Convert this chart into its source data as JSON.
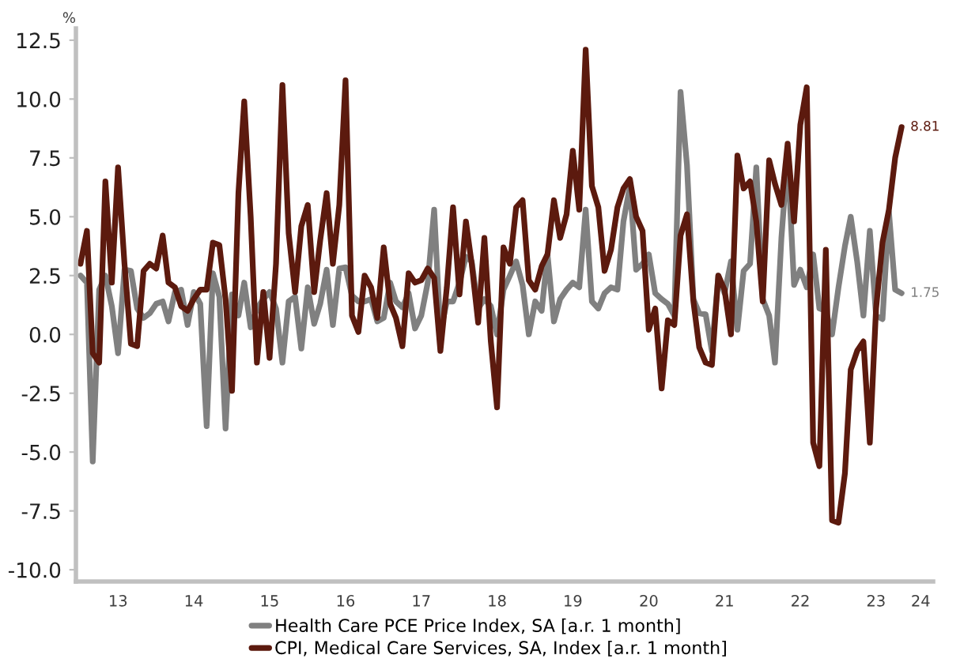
{
  "chart_data": {
    "type": "line",
    "ylabel": "%",
    "x": [
      "2013-01",
      "2013-02",
      "2013-03",
      "2013-04",
      "2013-05",
      "2013-06",
      "2013-07",
      "2013-08",
      "2013-09",
      "2013-10",
      "2013-11",
      "2013-12",
      "2014-01",
      "2014-02",
      "2014-03",
      "2014-04",
      "2014-05",
      "2014-06",
      "2014-07",
      "2014-08",
      "2014-09",
      "2014-10",
      "2014-11",
      "2014-12",
      "2015-01",
      "2015-02",
      "2015-03",
      "2015-04",
      "2015-05",
      "2015-06",
      "2015-07",
      "2015-08",
      "2015-09",
      "2015-10",
      "2015-11",
      "2015-12",
      "2016-01",
      "2016-02",
      "2016-03",
      "2016-04",
      "2016-05",
      "2016-06",
      "2016-07",
      "2016-08",
      "2016-09",
      "2016-10",
      "2016-11",
      "2016-12",
      "2017-01",
      "2017-02",
      "2017-03",
      "2017-04",
      "2017-05",
      "2017-06",
      "2017-07",
      "2017-08",
      "2017-09",
      "2017-10",
      "2017-11",
      "2017-12",
      "2018-01",
      "2018-02",
      "2018-03",
      "2018-04",
      "2018-05",
      "2018-06",
      "2018-07",
      "2018-08",
      "2018-09",
      "2018-10",
      "2018-11",
      "2018-12",
      "2019-01",
      "2019-02",
      "2019-03",
      "2019-04",
      "2019-05",
      "2019-06",
      "2019-07",
      "2019-08",
      "2019-09",
      "2019-10",
      "2019-11",
      "2019-12",
      "2020-01",
      "2020-02",
      "2020-03",
      "2020-04",
      "2020-05",
      "2020-06",
      "2020-07",
      "2020-08",
      "2020-09",
      "2020-10",
      "2020-11",
      "2020-12",
      "2021-01",
      "2021-02",
      "2021-03",
      "2021-04",
      "2021-05",
      "2021-06",
      "2021-07",
      "2021-08",
      "2021-09",
      "2021-10",
      "2021-11",
      "2021-12",
      "2022-01",
      "2022-02",
      "2022-03",
      "2022-04",
      "2022-05",
      "2022-06",
      "2022-07",
      "2022-08",
      "2022-09",
      "2022-10",
      "2022-11",
      "2022-12",
      "2023-01",
      "2023-02",
      "2023-03",
      "2023-04",
      "2023-05",
      "2023-06",
      "2023-07",
      "2023-08",
      "2023-09",
      "2023-10",
      "2023-11"
    ],
    "series": [
      {
        "name": "Health Care PCE Price Index, SA [a.r. 1 month]",
        "color": "#808080",
        "values": [
          2.5,
          2.2,
          -5.4,
          1.9,
          2.5,
          1.2,
          -0.8,
          2.75,
          2.7,
          1.1,
          0.7,
          0.9,
          1.3,
          1.4,
          0.55,
          1.8,
          1.9,
          0.4,
          1.8,
          1.3,
          -3.9,
          2.6,
          1.6,
          -4.0,
          1.7,
          0.8,
          2.2,
          0.3,
          1.1,
          1.5,
          1.8,
          1.1,
          -1.2,
          1.4,
          1.6,
          -0.6,
          2.0,
          0.45,
          1.3,
          2.75,
          0.4,
          2.8,
          2.85,
          1.65,
          1.4,
          1.4,
          1.5,
          0.55,
          0.7,
          2.2,
          1.4,
          1.15,
          1.75,
          0.25,
          0.8,
          2.2,
          5.3,
          0.1,
          1.4,
          1.4,
          2.2,
          3.3,
          3.1,
          1.1,
          1.5,
          1.2,
          0.0,
          1.9,
          2.5,
          3.1,
          2.1,
          0.0,
          1.4,
          1.0,
          3.4,
          0.55,
          1.5,
          1.9,
          2.2,
          2.0,
          5.3,
          1.4,
          1.1,
          1.75,
          2.0,
          1.9,
          4.8,
          6.3,
          2.75,
          3.0,
          3.4,
          1.75,
          1.5,
          1.3,
          0.8,
          10.3,
          7.2,
          1.5,
          0.9,
          0.85,
          -0.7,
          2.5,
          1.75,
          3.1,
          0.2,
          2.7,
          3.0,
          7.1,
          1.5,
          0.8,
          -1.2,
          4.1,
          7.6,
          2.1,
          2.75,
          2.0,
          3.4,
          1.1,
          1.0,
          0.0,
          2.0,
          3.75,
          5.0,
          3.1,
          0.8,
          4.4,
          0.8,
          0.65,
          5.2,
          1.9,
          1.75
        ]
      },
      {
        "name": "CPI, Medical Care Services, SA, Index [a.r. 1 month]",
        "color": "#5c1a0e",
        "values": [
          3.0,
          4.4,
          -0.8,
          -1.2,
          6.5,
          2.2,
          7.1,
          3.0,
          -0.4,
          -0.5,
          2.7,
          3.0,
          2.8,
          4.2,
          2.2,
          2.0,
          1.2,
          1.0,
          1.5,
          1.9,
          1.9,
          3.9,
          3.8,
          1.5,
          -2.4,
          6.0,
          9.9,
          5.0,
          -1.2,
          1.8,
          -1.0,
          3.0,
          10.6,
          4.3,
          1.8,
          4.6,
          5.5,
          1.8,
          4.0,
          6.0,
          3.0,
          5.5,
          10.8,
          0.8,
          0.1,
          2.5,
          2.0,
          0.7,
          3.7,
          1.3,
          0.7,
          -0.5,
          2.6,
          2.2,
          2.3,
          2.8,
          2.4,
          -0.7,
          2.0,
          5.4,
          1.7,
          4.8,
          3.0,
          0.5,
          4.1,
          -0.3,
          -3.1,
          3.7,
          3.0,
          5.4,
          5.7,
          2.3,
          1.9,
          2.9,
          3.4,
          5.7,
          4.1,
          5.1,
          7.8,
          5.3,
          12.1,
          6.3,
          5.4,
          2.7,
          3.6,
          5.4,
          6.2,
          6.6,
          5.0,
          4.4,
          0.2,
          1.1,
          -2.3,
          0.6,
          0.4,
          4.2,
          5.1,
          1.4,
          -0.55,
          -1.2,
          -1.3,
          2.5,
          1.9,
          0.0,
          7.6,
          6.2,
          6.5,
          4.8,
          1.4,
          7.4,
          6.4,
          5.5,
          8.1,
          4.8,
          8.9,
          10.5,
          -4.6,
          -5.6,
          3.6,
          -7.9,
          -8.0,
          -5.9,
          -1.5,
          -0.7,
          -0.3,
          -4.6,
          1.1,
          3.9,
          5.3,
          7.5,
          8.81
        ]
      }
    ],
    "annotations": [
      {
        "text": "8.81",
        "x": "2023-11",
        "y": 8.81
      },
      {
        "text": "1.75",
        "x": "2023-11",
        "y": 1.75
      }
    ],
    "xlim": [
      "2012-12-10",
      "2024-04-01"
    ],
    "xticks": [
      {
        "value": "2013-07",
        "label": "13"
      },
      {
        "value": "2014-07",
        "label": "14"
      },
      {
        "value": "2015-07",
        "label": "15"
      },
      {
        "value": "2016-07",
        "label": "16"
      },
      {
        "value": "2017-07",
        "label": "17"
      },
      {
        "value": "2018-07",
        "label": "18"
      },
      {
        "value": "2019-07",
        "label": "19"
      },
      {
        "value": "2020-07",
        "label": "20"
      },
      {
        "value": "2021-07",
        "label": "21"
      },
      {
        "value": "2022-07",
        "label": "22"
      },
      {
        "value": "2023-07",
        "label": "23"
      },
      {
        "value": "2024-02",
        "label": "24"
      }
    ],
    "ylim": [
      -10.5,
      13.0
    ],
    "yticks": [
      {
        "value": -10,
        "label": "-10.0"
      },
      {
        "value": -7.5,
        "label": "-7.5"
      },
      {
        "value": -5,
        "label": "-5.0"
      },
      {
        "value": -2.5,
        "label": "-2.5"
      },
      {
        "value": 0,
        "label": "0.0"
      },
      {
        "value": 2.5,
        "label": "2.5"
      },
      {
        "value": 5,
        "label": "5.0"
      },
      {
        "value": 7.5,
        "label": "7.5"
      },
      {
        "value": 10,
        "label": "10.0"
      },
      {
        "value": 12.5,
        "label": "12.5"
      }
    ],
    "grid": false,
    "legend": "bottom",
    "line_style": "solid"
  }
}
